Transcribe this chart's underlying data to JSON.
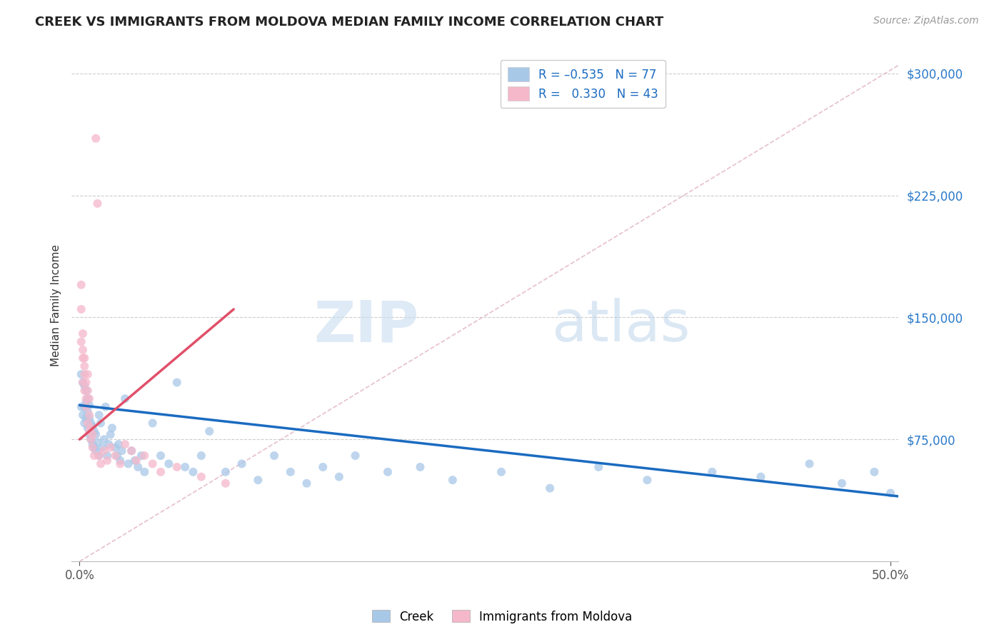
{
  "title": "CREEK VS IMMIGRANTS FROM MOLDOVA MEDIAN FAMILY INCOME CORRELATION CHART",
  "source": "Source: ZipAtlas.com",
  "ylabel": "Median Family Income",
  "xlim": [
    -0.005,
    0.505
  ],
  "ylim": [
    0,
    315000
  ],
  "yticks": [
    75000,
    150000,
    225000,
    300000
  ],
  "ytick_labels": [
    "$75,000",
    "$150,000",
    "$225,000",
    "$300,000"
  ],
  "creek_color": "#a8c8e8",
  "moldova_color": "#f5b8cb",
  "creek_line_color": "#1a6bc0",
  "moldova_line_color": "#e0506a",
  "diagonal_color": "#e0b0c0",
  "watermark_zip": "ZIP",
  "watermark_atlas": "atlas",
  "creek_scatter_x": [
    0.001,
    0.001,
    0.002,
    0.002,
    0.003,
    0.003,
    0.003,
    0.004,
    0.004,
    0.004,
    0.005,
    0.005,
    0.005,
    0.006,
    0.006,
    0.006,
    0.007,
    0.007,
    0.008,
    0.008,
    0.009,
    0.009,
    0.01,
    0.01,
    0.011,
    0.012,
    0.012,
    0.013,
    0.014,
    0.015,
    0.016,
    0.017,
    0.018,
    0.019,
    0.02,
    0.022,
    0.023,
    0.024,
    0.025,
    0.026,
    0.028,
    0.03,
    0.032,
    0.034,
    0.036,
    0.038,
    0.04,
    0.045,
    0.05,
    0.055,
    0.06,
    0.065,
    0.07,
    0.075,
    0.08,
    0.09,
    0.1,
    0.11,
    0.12,
    0.13,
    0.14,
    0.15,
    0.16,
    0.17,
    0.19,
    0.21,
    0.23,
    0.26,
    0.29,
    0.32,
    0.35,
    0.39,
    0.42,
    0.45,
    0.47,
    0.49,
    0.5
  ],
  "creek_scatter_y": [
    95000,
    115000,
    90000,
    110000,
    85000,
    95000,
    108000,
    88000,
    98000,
    105000,
    82000,
    92000,
    100000,
    78000,
    88000,
    96000,
    75000,
    85000,
    72000,
    83000,
    70000,
    80000,
    68000,
    78000,
    73000,
    65000,
    90000,
    85000,
    70000,
    75000,
    95000,
    65000,
    72000,
    78000,
    82000,
    70000,
    65000,
    72000,
    62000,
    68000,
    100000,
    60000,
    68000,
    62000,
    58000,
    65000,
    55000,
    85000,
    65000,
    60000,
    110000,
    58000,
    55000,
    65000,
    80000,
    55000,
    60000,
    50000,
    65000,
    55000,
    48000,
    58000,
    52000,
    65000,
    55000,
    58000,
    50000,
    55000,
    45000,
    58000,
    50000,
    55000,
    52000,
    60000,
    48000,
    55000,
    42000
  ],
  "moldova_scatter_x": [
    0.001,
    0.001,
    0.001,
    0.002,
    0.002,
    0.002,
    0.002,
    0.003,
    0.003,
    0.003,
    0.003,
    0.004,
    0.004,
    0.004,
    0.005,
    0.005,
    0.005,
    0.006,
    0.006,
    0.006,
    0.007,
    0.007,
    0.008,
    0.008,
    0.009,
    0.01,
    0.011,
    0.012,
    0.013,
    0.015,
    0.017,
    0.019,
    0.022,
    0.025,
    0.028,
    0.032,
    0.035,
    0.04,
    0.045,
    0.05,
    0.06,
    0.075,
    0.09
  ],
  "moldova_scatter_y": [
    155000,
    135000,
    170000,
    125000,
    140000,
    110000,
    130000,
    120000,
    105000,
    115000,
    125000,
    100000,
    110000,
    95000,
    85000,
    105000,
    115000,
    90000,
    80000,
    100000,
    75000,
    82000,
    70000,
    78000,
    65000,
    260000,
    220000,
    65000,
    60000,
    68000,
    62000,
    70000,
    65000,
    60000,
    72000,
    68000,
    62000,
    65000,
    60000,
    55000,
    58000,
    52000,
    48000
  ],
  "creek_trend_x0": 0.0,
  "creek_trend_x1": 0.505,
  "creek_trend_y0": 96000,
  "creek_trend_y1": 40000,
  "moldova_trend_x0": 0.0,
  "moldova_trend_x1": 0.095,
  "moldova_trend_y0": 75000,
  "moldova_trend_y1": 155000
}
